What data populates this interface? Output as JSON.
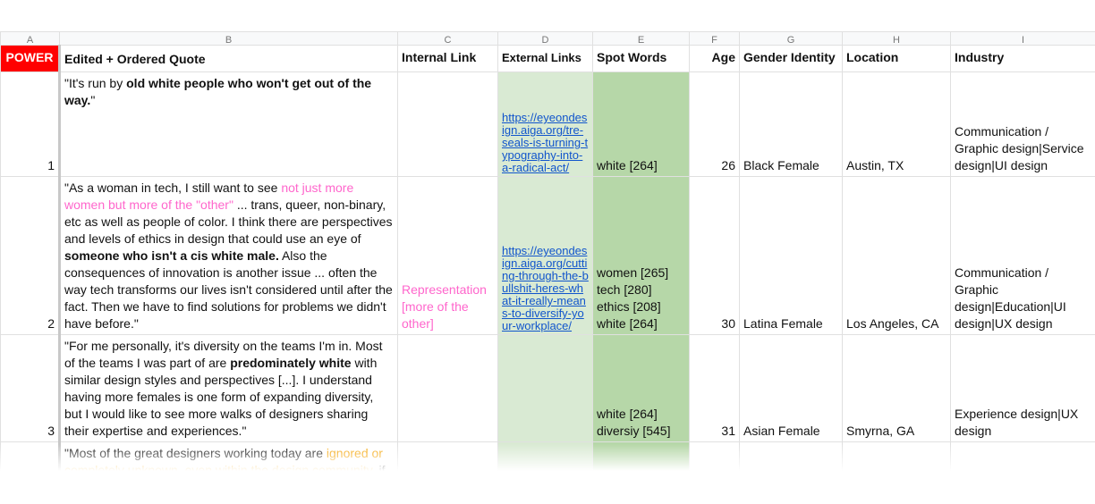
{
  "sheet": {
    "columns": [
      "A",
      "B",
      "C",
      "D",
      "E",
      "F",
      "G",
      "H",
      "I"
    ],
    "header": [
      "POWER",
      "Edited + Ordered Quote",
      "Internal Link",
      "External Links",
      "Spot Words",
      "Age",
      "Gender Identity",
      "Location",
      "Industry"
    ],
    "rows": [
      {
        "number": 1,
        "quote": [
          "\"It's run by ",
          {
            "text": "old white people who won't get out of the way.",
            "style": "bold"
          },
          "\""
        ],
        "internal": [],
        "link": "https://eyeondesign.aiga.org/tre-seals-is-turning-typography-into-a-radical-act/",
        "spot": [
          "white [264]"
        ],
        "age": 26,
        "gender": "Black Female",
        "location": "Austin, TX",
        "industry": "Communication / Graphic design|Service design|UI design"
      },
      {
        "number": 2,
        "quote": [
          "\"As a woman in tech, I still want to see ",
          {
            "text": "not just more women but more of the \"other\"",
            "style": "pink"
          },
          " ... trans, queer, non-binary, etc as well as people of color. I think there are perspectives and levels of ethics in design that could use an eye of ",
          {
            "text": "someone who isn't a cis white male.",
            "style": "bold"
          },
          " Also the consequences of innovation is another issue ... often the way tech transforms our lives isn't considered until after the fact. Then we have to find solutions for problems we didn't have before.\""
        ],
        "internal": [
          {
            "text": "Representation [more of the other]",
            "style": "pink"
          }
        ],
        "link": "https://eyeondesign.aiga.org/cutting-through-the-bullshit-heres-what-it-really-means-to-diversify-your-workplace/",
        "spot": [
          "women [265]",
          "tech [280]",
          "ethics [208]",
          "white [264]"
        ],
        "age": 30,
        "gender": "Latina Female",
        "location": "Los Angeles, CA",
        "industry": "Communication / Graphic design|Education|UI design|UX design"
      },
      {
        "number": 3,
        "quote": [
          "\"For me personally, it's diversity on the teams I'm in. Most of the teams I was part of are ",
          {
            "text": "predominately white",
            "style": "bold"
          },
          " with similar design styles and perspectives [...]. I understand having more females is one form of expanding diversity, but I would like to see more walks of designers sharing their expertise and experiences.\""
        ],
        "internal": [],
        "link": null,
        "spot": [
          "white [264]",
          "diversiy [545]"
        ],
        "age": 31,
        "gender": "Asian Female",
        "location": "Smyrna, GA",
        "industry": "Experience design|UX design"
      },
      {
        "number": null,
        "quote": [
          "\"Most of the great designers working today are ",
          {
            "text": "ignored or completely unknown, even within the design community",
            "style": "orange"
          },
          ", if"
        ],
        "internal": [],
        "link": null,
        "spot": [],
        "age": null,
        "gender": null,
        "location": null,
        "industry": null
      }
    ]
  }
}
